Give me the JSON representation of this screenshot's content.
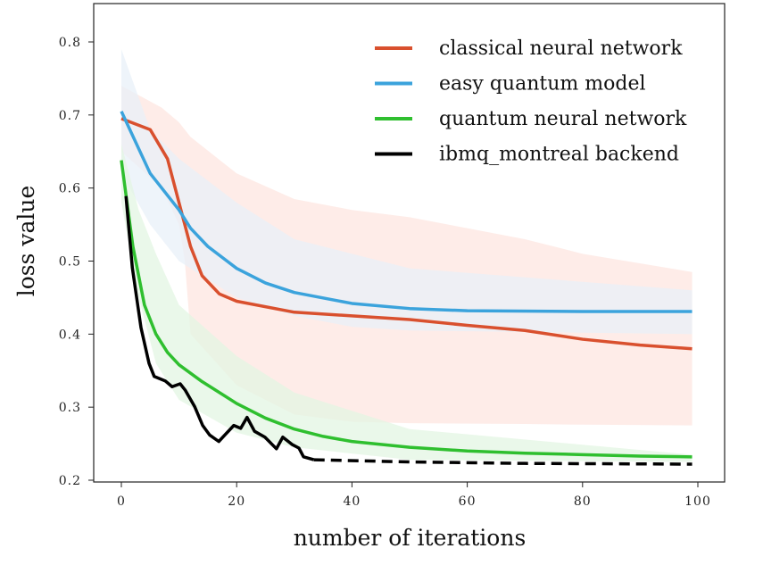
{
  "chart_data": {
    "type": "line",
    "title": "",
    "xlabel": "number of iterations",
    "ylabel": "loss value",
    "xlim": [
      -5,
      105
    ],
    "ylim": [
      0.2,
      0.8
    ],
    "xticks": [
      0,
      20,
      40,
      60,
      80,
      100
    ],
    "yticks": [
      0.2,
      0.3,
      0.4,
      0.5,
      0.6,
      0.7,
      0.8
    ],
    "xtick_labels": [
      "0",
      "20",
      "40",
      "60",
      "80",
      "100"
    ],
    "ytick_labels": [
      "0.2",
      "0.3",
      "0.4",
      "0.5",
      "0.6",
      "0.7",
      "0.8"
    ],
    "grid": false,
    "legend_position": "top-right",
    "series": [
      {
        "name": "classical neural network",
        "color": "#d9502e",
        "band_color": "#fde6e0",
        "x": [
          0,
          5,
          8,
          10,
          12,
          14,
          17,
          20,
          30,
          40,
          50,
          60,
          70,
          80,
          90,
          99
        ],
        "y": [
          0.695,
          0.68,
          0.64,
          0.58,
          0.52,
          0.48,
          0.455,
          0.445,
          0.43,
          0.425,
          0.42,
          0.412,
          0.405,
          0.393,
          0.385,
          0.38
        ],
        "band_x": [
          0,
          7,
          10,
          11,
          12,
          20,
          30,
          40,
          50,
          70,
          80,
          99
        ],
        "band_upper": [
          0.74,
          0.71,
          0.69,
          0.68,
          0.67,
          0.62,
          0.585,
          0.57,
          0.56,
          0.53,
          0.51,
          0.485
        ],
        "band_lower": [
          0.65,
          0.6,
          0.55,
          0.5,
          0.4,
          0.33,
          0.29,
          0.28,
          0.278,
          0.277,
          0.276,
          0.275
        ]
      },
      {
        "name": "easy quantum model",
        "color": "#3ba3dc",
        "band_color": "#e8f0f8",
        "x": [
          0,
          5,
          10,
          12,
          15,
          20,
          25,
          30,
          40,
          50,
          60,
          80,
          99
        ],
        "y": [
          0.705,
          0.62,
          0.57,
          0.545,
          0.52,
          0.49,
          0.47,
          0.457,
          0.442,
          0.435,
          0.432,
          0.431,
          0.431
        ],
        "band_x": [
          0,
          5,
          10,
          20,
          30,
          40,
          50,
          99
        ],
        "band_upper": [
          0.79,
          0.68,
          0.64,
          0.58,
          0.53,
          0.51,
          0.49,
          0.46
        ],
        "band_lower": [
          0.62,
          0.55,
          0.5,
          0.45,
          0.425,
          0.41,
          0.405,
          0.4
        ]
      },
      {
        "name": "quantum neural network",
        "color": "#2fbf2f",
        "band_color": "#e3f6e3",
        "x": [
          0,
          2,
          4,
          6,
          8,
          10,
          14,
          20,
          25,
          30,
          35,
          40,
          50,
          60,
          70,
          80,
          90,
          99
        ],
        "y": [
          0.638,
          0.52,
          0.44,
          0.4,
          0.375,
          0.358,
          0.335,
          0.305,
          0.285,
          0.27,
          0.26,
          0.253,
          0.245,
          0.24,
          0.237,
          0.235,
          0.233,
          0.232
        ],
        "band_x": [
          0,
          3,
          5,
          6,
          10,
          20,
          30,
          50,
          99
        ],
        "band_upper": [
          0.66,
          0.57,
          0.53,
          0.51,
          0.44,
          0.37,
          0.32,
          0.27,
          0.235
        ],
        "band_lower": [
          0.58,
          0.45,
          0.39,
          0.36,
          0.31,
          0.265,
          0.245,
          0.228,
          0.225
        ]
      },
      {
        "name": "ibmq_montreal backend",
        "color": "#000000",
        "x": [
          0.8,
          1.9,
          3.4,
          4.8,
          5.7,
          7.6,
          8.8,
          10.2,
          11.1,
          12.7,
          14.1,
          15.3,
          16.9,
          19.5,
          20.7,
          21.8,
          23.1,
          24.9,
          26.9,
          28.0,
          29.6,
          30.8,
          31.6,
          33.4
        ],
        "y": [
          0.589,
          0.491,
          0.409,
          0.36,
          0.342,
          0.336,
          0.328,
          0.332,
          0.323,
          0.301,
          0.275,
          0.262,
          0.253,
          0.275,
          0.271,
          0.286,
          0.267,
          0.259,
          0.243,
          0.259,
          0.249,
          0.244,
          0.232,
          0.228
        ],
        "dashed_x": [
          33.4,
          50,
          70,
          99
        ],
        "dashed_y": [
          0.228,
          0.225,
          0.223,
          0.222
        ]
      }
    ]
  }
}
